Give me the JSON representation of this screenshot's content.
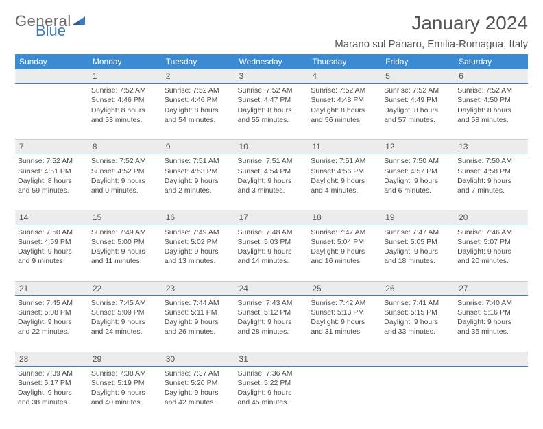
{
  "brand": {
    "name_part1": "General",
    "name_part2": "Blue"
  },
  "title": "January 2024",
  "location": "Marano sul Panaro, Emilia-Romagna, Italy",
  "colors": {
    "header_bg": "#3b8bd4",
    "header_text": "#ffffff",
    "row_divider": "#3b7bbf",
    "daynum_bg": "#ececec",
    "text": "#4a4a4a",
    "logo_gray": "#6b6b6b",
    "logo_blue": "#3b7bbf"
  },
  "day_headers": [
    "Sunday",
    "Monday",
    "Tuesday",
    "Wednesday",
    "Thursday",
    "Friday",
    "Saturday"
  ],
  "weeks": [
    {
      "nums": [
        "",
        "1",
        "2",
        "3",
        "4",
        "5",
        "6"
      ],
      "cells": [
        {
          "empty": true
        },
        {
          "sunrise": "7:52 AM",
          "sunset": "4:46 PM",
          "daylight": "8 hours and 53 minutes."
        },
        {
          "sunrise": "7:52 AM",
          "sunset": "4:46 PM",
          "daylight": "8 hours and 54 minutes."
        },
        {
          "sunrise": "7:52 AM",
          "sunset": "4:47 PM",
          "daylight": "8 hours and 55 minutes."
        },
        {
          "sunrise": "7:52 AM",
          "sunset": "4:48 PM",
          "daylight": "8 hours and 56 minutes."
        },
        {
          "sunrise": "7:52 AM",
          "sunset": "4:49 PM",
          "daylight": "8 hours and 57 minutes."
        },
        {
          "sunrise": "7:52 AM",
          "sunset": "4:50 PM",
          "daylight": "8 hours and 58 minutes."
        }
      ]
    },
    {
      "nums": [
        "7",
        "8",
        "9",
        "10",
        "11",
        "12",
        "13"
      ],
      "cells": [
        {
          "sunrise": "7:52 AM",
          "sunset": "4:51 PM",
          "daylight": "8 hours and 59 minutes."
        },
        {
          "sunrise": "7:52 AM",
          "sunset": "4:52 PM",
          "daylight": "9 hours and 0 minutes."
        },
        {
          "sunrise": "7:51 AM",
          "sunset": "4:53 PM",
          "daylight": "9 hours and 2 minutes."
        },
        {
          "sunrise": "7:51 AM",
          "sunset": "4:54 PM",
          "daylight": "9 hours and 3 minutes."
        },
        {
          "sunrise": "7:51 AM",
          "sunset": "4:56 PM",
          "daylight": "9 hours and 4 minutes."
        },
        {
          "sunrise": "7:50 AM",
          "sunset": "4:57 PM",
          "daylight": "9 hours and 6 minutes."
        },
        {
          "sunrise": "7:50 AM",
          "sunset": "4:58 PM",
          "daylight": "9 hours and 7 minutes."
        }
      ]
    },
    {
      "nums": [
        "14",
        "15",
        "16",
        "17",
        "18",
        "19",
        "20"
      ],
      "cells": [
        {
          "sunrise": "7:50 AM",
          "sunset": "4:59 PM",
          "daylight": "9 hours and 9 minutes."
        },
        {
          "sunrise": "7:49 AM",
          "sunset": "5:00 PM",
          "daylight": "9 hours and 11 minutes."
        },
        {
          "sunrise": "7:49 AM",
          "sunset": "5:02 PM",
          "daylight": "9 hours and 13 minutes."
        },
        {
          "sunrise": "7:48 AM",
          "sunset": "5:03 PM",
          "daylight": "9 hours and 14 minutes."
        },
        {
          "sunrise": "7:47 AM",
          "sunset": "5:04 PM",
          "daylight": "9 hours and 16 minutes."
        },
        {
          "sunrise": "7:47 AM",
          "sunset": "5:05 PM",
          "daylight": "9 hours and 18 minutes."
        },
        {
          "sunrise": "7:46 AM",
          "sunset": "5:07 PM",
          "daylight": "9 hours and 20 minutes."
        }
      ]
    },
    {
      "nums": [
        "21",
        "22",
        "23",
        "24",
        "25",
        "26",
        "27"
      ],
      "cells": [
        {
          "sunrise": "7:45 AM",
          "sunset": "5:08 PM",
          "daylight": "9 hours and 22 minutes."
        },
        {
          "sunrise": "7:45 AM",
          "sunset": "5:09 PM",
          "daylight": "9 hours and 24 minutes."
        },
        {
          "sunrise": "7:44 AM",
          "sunset": "5:11 PM",
          "daylight": "9 hours and 26 minutes."
        },
        {
          "sunrise": "7:43 AM",
          "sunset": "5:12 PM",
          "daylight": "9 hours and 28 minutes."
        },
        {
          "sunrise": "7:42 AM",
          "sunset": "5:13 PM",
          "daylight": "9 hours and 31 minutes."
        },
        {
          "sunrise": "7:41 AM",
          "sunset": "5:15 PM",
          "daylight": "9 hours and 33 minutes."
        },
        {
          "sunrise": "7:40 AM",
          "sunset": "5:16 PM",
          "daylight": "9 hours and 35 minutes."
        }
      ]
    },
    {
      "nums": [
        "28",
        "29",
        "30",
        "31",
        "",
        "",
        ""
      ],
      "cells": [
        {
          "sunrise": "7:39 AM",
          "sunset": "5:17 PM",
          "daylight": "9 hours and 38 minutes."
        },
        {
          "sunrise": "7:38 AM",
          "sunset": "5:19 PM",
          "daylight": "9 hours and 40 minutes."
        },
        {
          "sunrise": "7:37 AM",
          "sunset": "5:20 PM",
          "daylight": "9 hours and 42 minutes."
        },
        {
          "sunrise": "7:36 AM",
          "sunset": "5:22 PM",
          "daylight": "9 hours and 45 minutes."
        },
        {
          "empty": true
        },
        {
          "empty": true
        },
        {
          "empty": true
        }
      ]
    }
  ],
  "labels": {
    "sunrise": "Sunrise:",
    "sunset": "Sunset:",
    "daylight": "Daylight:"
  }
}
